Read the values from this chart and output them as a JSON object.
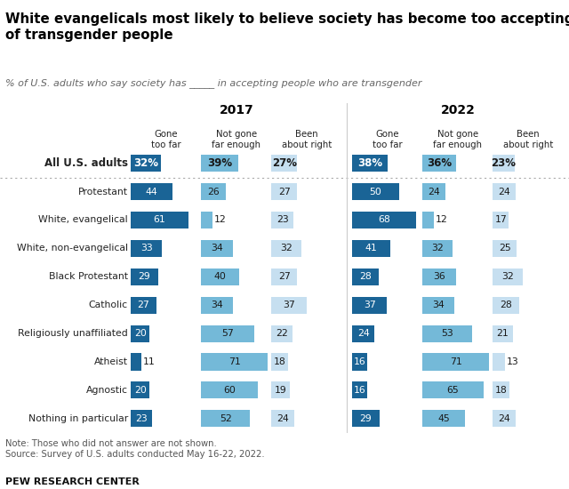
{
  "title": "White evangelicals most likely to believe society has become too accepting\nof transgender people",
  "subtitle": "% of U.S. adults who say society has _____ in accepting people who are transgender",
  "categories": [
    "All U.S. adults",
    "Protestant",
    "White, evangelical",
    "White, non-evangelical",
    "Black Protestant",
    "Catholic",
    "Religiously unaffiliated",
    "Atheist",
    "Agnostic",
    "Nothing in particular"
  ],
  "data_2017": [
    [
      32,
      39,
      27
    ],
    [
      44,
      26,
      27
    ],
    [
      61,
      12,
      23
    ],
    [
      33,
      34,
      32
    ],
    [
      29,
      40,
      27
    ],
    [
      27,
      34,
      37
    ],
    [
      20,
      57,
      22
    ],
    [
      11,
      71,
      18
    ],
    [
      20,
      60,
      19
    ],
    [
      23,
      52,
      24
    ]
  ],
  "data_2022": [
    [
      38,
      36,
      23
    ],
    [
      50,
      24,
      24
    ],
    [
      68,
      12,
      17
    ],
    [
      41,
      32,
      25
    ],
    [
      28,
      36,
      32
    ],
    [
      37,
      34,
      28
    ],
    [
      24,
      53,
      21
    ],
    [
      16,
      71,
      13
    ],
    [
      16,
      65,
      18
    ],
    [
      29,
      45,
      24
    ]
  ],
  "color_gone_too_far": "#1a6496",
  "color_not_gone_far": "#74b9d8",
  "color_about_right": "#c6dff0",
  "note": "Note: Those who did not answer are not shown.\nSource: Survey of U.S. adults conducted May 16-22, 2022.",
  "footer": "PEW RESEARCH CENTER",
  "col_scale": 75
}
